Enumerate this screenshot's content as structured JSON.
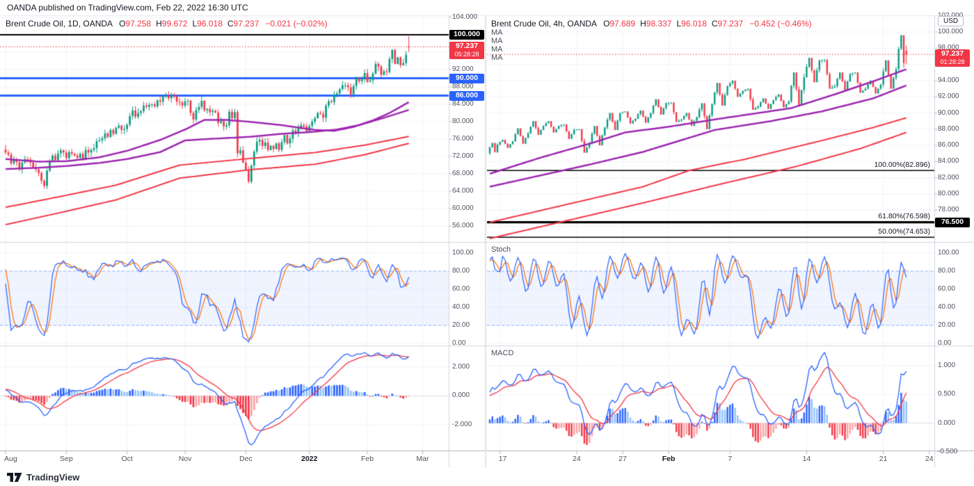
{
  "header": {
    "publisher_line": "OANDA published on TradingView.com, Feb 22, 2022 16:30 UTC"
  },
  "footer": {
    "brand": "TradingView"
  },
  "colors": {
    "up": "#089981",
    "down": "#F23645",
    "blue_line": "#2962FF",
    "black_line": "#000000",
    "ma_purple": "#9C27B0",
    "ma_red": "#F23645",
    "stoch_k": "#2962FF",
    "stoch_d": "#FF6D00",
    "macd_line": "#2962FF",
    "macd_signal": "#F23645",
    "hist_pos": "#2962FF",
    "hist_pos_light": "#90BFF9",
    "hist_neg": "#F23645",
    "hist_neg_light": "#FAA1A4",
    "grid": "#F0F3FA",
    "band_fill": "rgba(41,98,255,0.07)",
    "band_edge": "rgba(41,98,255,0.45)",
    "badge_red": "#F23645",
    "badge_blue": "#2962FF",
    "badge_black": "#000000"
  },
  "chart_data": [
    {
      "type": "candlestick",
      "title": "Brent Crude Oil, 1D, OANDA",
      "readout": [
        {
          "k": "O",
          "v": "97.258"
        },
        {
          "k": "H",
          "v": "99.672"
        },
        {
          "k": "L",
          "v": "96.018"
        },
        {
          "k": "C",
          "v": "97.237"
        }
      ],
      "change": "−0.021 (−0.02%)",
      "price_axis": {
        "label_ticks": [
          104,
          92,
          88,
          84,
          80,
          76,
          72,
          68,
          64,
          60,
          56
        ],
        "grid_from": 56,
        "grid_to": 104,
        "grid_step": 4
      },
      "levels": [
        {
          "price": 100,
          "color": "#000000",
          "width": 2,
          "badge": "100.000",
          "badge_bg": "#000000"
        },
        {
          "price": 90,
          "color": "#2962FF",
          "width": 3,
          "badge": "90.000",
          "badge_bg": "#2962FF"
        },
        {
          "price": 86,
          "color": "#2962FF",
          "width": 3,
          "badge": "86.000",
          "badge_bg": "#2962FF"
        }
      ],
      "last_price": {
        "value": 97.237,
        "badge": "97.237",
        "countdown": "05:28:28",
        "badge_bg": "#F23645"
      },
      "first_open": 73.6,
      "months": [
        {
          "label": "Aug",
          "closes": [
            72.9,
            72.4,
            70.4,
            71.3,
            70.7,
            69.0,
            70.6,
            71.4,
            71.3,
            70.6,
            69.5,
            69.0,
            68.2,
            66.4,
            65.2,
            68.7,
            71.0,
            72.2,
            71.1,
            72.7,
            73.4,
            72.9
          ]
        },
        {
          "label": "Sep",
          "closes": [
            71.6,
            73.0,
            72.6,
            72.2,
            71.7,
            72.6,
            71.5,
            73.5,
            72.9,
            73.5,
            73.9,
            75.5,
            75.7,
            76.2,
            77.3,
            76.5,
            78.1,
            77.2,
            78.6,
            79.1,
            78.1,
            78.3
          ]
        },
        {
          "label": "Oct",
          "closes": [
            79.3,
            81.3,
            82.6,
            81.1,
            82.0,
            82.4,
            83.7,
            83.4,
            83.9,
            84.0,
            83.5,
            84.9,
            84.6,
            85.8,
            86.0,
            85.4,
            86.1,
            85.8,
            84.6,
            84.4,
            83.7
          ]
        },
        {
          "label": "Nov",
          "closes": [
            84.7,
            84.8,
            82.0,
            80.5,
            82.7,
            83.4,
            84.8,
            82.6,
            82.9,
            82.2,
            82.5,
            82.1,
            79.7,
            80.1,
            78.9,
            79.2,
            82.3,
            80.8,
            82.2,
            72.7,
            73.4,
            70.6
          ]
        },
        {
          "label": "Dec",
          "closes": [
            68.9,
            66.2,
            69.9,
            73.1,
            75.4,
            75.8,
            74.4,
            75.2,
            73.5,
            74.4,
            73.7,
            75.0,
            73.5,
            75.3,
            76.9,
            75.0,
            76.1,
            78.0,
            77.5,
            78.6,
            79.2,
            78.9,
            77.8
          ]
        },
        {
          "label": "2022",
          "bold": true,
          "closes": [
            79.0,
            80.0,
            80.8,
            82.0,
            81.8,
            80.9,
            83.7,
            84.7,
            84.5,
            86.1,
            86.5,
            87.5,
            88.4,
            88.4,
            87.9,
            86.3,
            88.2,
            90.0,
            89.3,
            90.0,
            91.2
          ]
        },
        {
          "label": "Feb",
          "closes": [
            89.2,
            89.5,
            91.1,
            93.3,
            92.7,
            90.8,
            91.6,
            91.4,
            94.4,
            96.5,
            93.3,
            94.8,
            93.0,
            93.5,
            95.4,
            97.2
          ]
        }
      ],
      "future_label": {
        "label": "Mar",
        "index": 151
      },
      "last_candle": {
        "o": 97.258,
        "h": 99.672,
        "l": 96.018,
        "c": 97.237
      },
      "ma_lines": [
        {
          "color": "#9C27B0",
          "width": 2.5,
          "points": [
            [
              0,
              71.4
            ],
            [
              12,
              70.8
            ],
            [
              22,
              70.9
            ],
            [
              34,
              71.8
            ],
            [
              44,
              73.3
            ],
            [
              56,
              75.8
            ],
            [
              65,
              78.2
            ],
            [
              72,
              80.4
            ],
            [
              80,
              80.4
            ],
            [
              88,
              80.0
            ],
            [
              100,
              79.2
            ],
            [
              112,
              78.1
            ],
            [
              119,
              77.9
            ],
            [
              126,
              78.8
            ],
            [
              133,
              80.3
            ],
            [
              139,
              82.0
            ],
            [
              146,
              84.5
            ]
          ]
        },
        {
          "color": "#9C27B0",
          "width": 2.5,
          "points": [
            [
              0,
              69.1
            ],
            [
              12,
              69.4
            ],
            [
              22,
              69.8
            ],
            [
              34,
              70.5
            ],
            [
              44,
              71.4
            ],
            [
              56,
              73.0
            ],
            [
              65,
              75.7
            ],
            [
              76,
              76.1
            ],
            [
              88,
              76.5
            ],
            [
              100,
              77.2
            ],
            [
              112,
              77.7
            ],
            [
              120,
              78.2
            ],
            [
              128,
              79.2
            ],
            [
              137,
              80.9
            ],
            [
              146,
              82.7
            ]
          ]
        },
        {
          "color": "#F23645",
          "width": 2,
          "points": [
            [
              0,
              60.3
            ],
            [
              20,
              62.8
            ],
            [
              40,
              65.4
            ],
            [
              63,
              70.0
            ],
            [
              88,
              71.5
            ],
            [
              112,
              72.9
            ],
            [
              130,
              74.6
            ],
            [
              146,
              76.6
            ]
          ]
        },
        {
          "color": "#F23645",
          "width": 2,
          "points": [
            [
              0,
              56.3
            ],
            [
              20,
              59.1
            ],
            [
              40,
              62.0
            ],
            [
              63,
              67.0
            ],
            [
              88,
              68.9
            ],
            [
              112,
              70.2
            ],
            [
              130,
              72.4
            ],
            [
              146,
              75.0
            ]
          ]
        }
      ],
      "stoch": {
        "k": 14,
        "smooth": 3,
        "d": 3
      },
      "macd": {
        "fast": 12,
        "slow": 26,
        "signal": 9
      },
      "stoch_axis": [
        "100.00",
        "80.00",
        "60.00",
        "40.00",
        "20.00",
        "0.00"
      ],
      "macd_axis": [
        {
          "v": 2,
          "t": "2.000"
        },
        {
          "v": 0,
          "t": "0.000"
        },
        {
          "v": -2,
          "t": "-2.000"
        }
      ]
    },
    {
      "type": "candlestick",
      "title": "Brent Crude Oil, 4h, OANDA",
      "readout": [
        {
          "k": "O",
          "v": "97.689"
        },
        {
          "k": "H",
          "v": "98.337"
        },
        {
          "k": "L",
          "v": "96.018"
        },
        {
          "k": "C",
          "v": "97.237"
        }
      ],
      "change": "−0.452 (−0.46%)",
      "ma_legend": [
        "MA",
        "MA",
        "MA",
        "MA"
      ],
      "currency_chip": "USD",
      "pane_labels": {
        "stoch": "Stoch",
        "macd": "MACD"
      },
      "price_axis": {
        "label_ticks": [
          102,
          100,
          98,
          94,
          92,
          90,
          88,
          86,
          84,
          82,
          80,
          78
        ],
        "grid_from": 76,
        "grid_to": 102,
        "grid_step": 2
      },
      "levels": [
        {
          "price": 76.5,
          "color": "#000000",
          "width": 3,
          "badge": "76.500",
          "badge_bg": "#000000"
        }
      ],
      "fib_levels": [
        {
          "text": "100.00%(82.896)",
          "price": 82.896,
          "width": 1.5
        },
        {
          "text": "61.80%(76.598)",
          "price": 76.598,
          "width": 1
        },
        {
          "text": "50.00%(74.653)",
          "price": 74.653,
          "width": 1.5
        }
      ],
      "last_price": {
        "value": 97.237,
        "badge": "97.237",
        "countdown": "01:28:28",
        "badge_bg": "#F23645"
      },
      "days": [
        {
          "d": "14",
          "o": 85.0,
          "h": 86.3,
          "lo": 84.8,
          "c": 86.1,
          "n": 4
        },
        {
          "d": "17",
          "show": "17",
          "o": 86.1,
          "h": 86.7,
          "lo": 85.7,
          "c": 86.5
        },
        {
          "d": "18",
          "o": 86.5,
          "h": 88.1,
          "lo": 86.2,
          "c": 87.5
        },
        {
          "d": "19",
          "o": 87.5,
          "h": 89.0,
          "lo": 87.3,
          "c": 88.4
        },
        {
          "d": "20",
          "o": 88.4,
          "h": 89.0,
          "lo": 87.6,
          "c": 88.4
        },
        {
          "d": "21",
          "o": 88.4,
          "h": 88.6,
          "lo": 86.8,
          "c": 87.9
        },
        {
          "d": "24",
          "show": "24",
          "o": 87.9,
          "h": 88.0,
          "lo": 85.1,
          "c": 86.3
        },
        {
          "d": "25",
          "o": 86.3,
          "h": 88.4,
          "lo": 86.0,
          "c": 88.2
        },
        {
          "d": "26",
          "o": 88.2,
          "h": 90.0,
          "lo": 87.9,
          "c": 90.0
        },
        {
          "d": "27",
          "show": "27",
          "o": 90.0,
          "h": 90.2,
          "lo": 88.7,
          "c": 89.3
        },
        {
          "d": "28",
          "o": 89.3,
          "h": 90.3,
          "lo": 88.8,
          "c": 90.0
        },
        {
          "d": "31",
          "o": 90.0,
          "h": 91.7,
          "lo": 89.8,
          "c": 91.2
        },
        {
          "d": "1",
          "show": "Feb",
          "bold": true,
          "o": 91.2,
          "h": 91.3,
          "lo": 88.9,
          "c": 89.2
        },
        {
          "d": "2",
          "o": 89.2,
          "h": 90.0,
          "lo": 88.4,
          "c": 89.5
        },
        {
          "d": "3",
          "o": 89.5,
          "h": 91.2,
          "lo": 88.0,
          "c": 91.1
        },
        {
          "d": "4",
          "o": 91.1,
          "h": 93.7,
          "lo": 90.9,
          "c": 93.3
        },
        {
          "d": "7",
          "show": "7",
          "o": 93.3,
          "h": 94.0,
          "lo": 92.0,
          "c": 92.7
        },
        {
          "d": "8",
          "o": 92.7,
          "h": 93.0,
          "lo": 90.4,
          "c": 90.8
        },
        {
          "d": "9",
          "o": 90.8,
          "h": 91.8,
          "lo": 90.5,
          "c": 91.6
        },
        {
          "d": "10",
          "o": 91.6,
          "h": 92.3,
          "lo": 90.7,
          "c": 91.4
        },
        {
          "d": "11",
          "o": 91.4,
          "h": 95.0,
          "lo": 90.9,
          "c": 94.4
        },
        {
          "d": "14",
          "show": "14",
          "o": 94.4,
          "h": 96.8,
          "lo": 93.8,
          "c": 96.5
        },
        {
          "d": "15",
          "o": 96.5,
          "h": 96.6,
          "lo": 93.0,
          "c": 93.3
        },
        {
          "d": "16",
          "o": 93.3,
          "h": 95.0,
          "lo": 92.8,
          "c": 94.8
        },
        {
          "d": "17",
          "o": 94.8,
          "h": 95.0,
          "lo": 92.5,
          "c": 93.0
        },
        {
          "d": "18",
          "o": 93.0,
          "h": 94.0,
          "lo": 92.4,
          "c": 93.5
        },
        {
          "d": "21",
          "show": "21",
          "o": 93.5,
          "h": 96.5,
          "lo": 93.0,
          "c": 95.4
        },
        {
          "d": "22",
          "o": 95.4,
          "h": 99.6,
          "lo": 95.0,
          "c": 97.2,
          "n": 4
        }
      ],
      "future_label": {
        "label": "24",
        "index": 172
      },
      "last_candle": {
        "o": 97.689,
        "h": 98.337,
        "l": 96.018,
        "c": 97.237
      },
      "ma_lines": [
        {
          "color": "#9C27B0",
          "width": 2.5,
          "points": [
            [
              0,
              82.5
            ],
            [
              20,
              84.5
            ],
            [
              40,
              86.3
            ],
            [
              53,
              87.6
            ],
            [
              70,
              88.3
            ],
            [
              88,
              89.2
            ],
            [
              118,
              90.6
            ],
            [
              135,
              92.3
            ],
            [
              150,
              93.9
            ],
            [
              163,
              95.4
            ]
          ]
        },
        {
          "color": "#9C27B0",
          "width": 2.5,
          "points": [
            [
              0,
              80.9
            ],
            [
              20,
              82.3
            ],
            [
              40,
              83.7
            ],
            [
              60,
              85.2
            ],
            [
              88,
              87.9
            ],
            [
              110,
              89.0
            ],
            [
              130,
              90.2
            ],
            [
              150,
              91.8
            ],
            [
              163,
              93.4
            ]
          ]
        },
        {
          "color": "#F23645",
          "width": 2,
          "points": [
            [
              0,
              76.5
            ],
            [
              30,
              78.7
            ],
            [
              60,
              80.9
            ],
            [
              78,
              82.9
            ],
            [
              100,
              84.3
            ],
            [
              130,
              86.6
            ],
            [
              150,
              88.2
            ],
            [
              163,
              89.4
            ]
          ]
        },
        {
          "color": "#F23645",
          "width": 2,
          "points": [
            [
              0,
              74.5
            ],
            [
              30,
              76.7
            ],
            [
              60,
              78.9
            ],
            [
              90,
              81.2
            ],
            [
              120,
              83.4
            ],
            [
              145,
              85.6
            ],
            [
              163,
              87.6
            ]
          ]
        }
      ],
      "stoch": {
        "k": 14,
        "smooth": 3,
        "d": 3
      },
      "macd": {
        "fast": 12,
        "slow": 26,
        "signal": 9
      },
      "stoch_axis": [
        "100.00",
        "80.00",
        "60.00",
        "40.00",
        "20.00",
        "0.00"
      ],
      "macd_axis": [
        {
          "v": 1,
          "t": "1.000"
        },
        {
          "v": 0.5,
          "t": "0.500"
        },
        {
          "v": 0,
          "t": "0.000"
        },
        {
          "v": -0.5,
          "t": "-0.500"
        }
      ]
    }
  ]
}
